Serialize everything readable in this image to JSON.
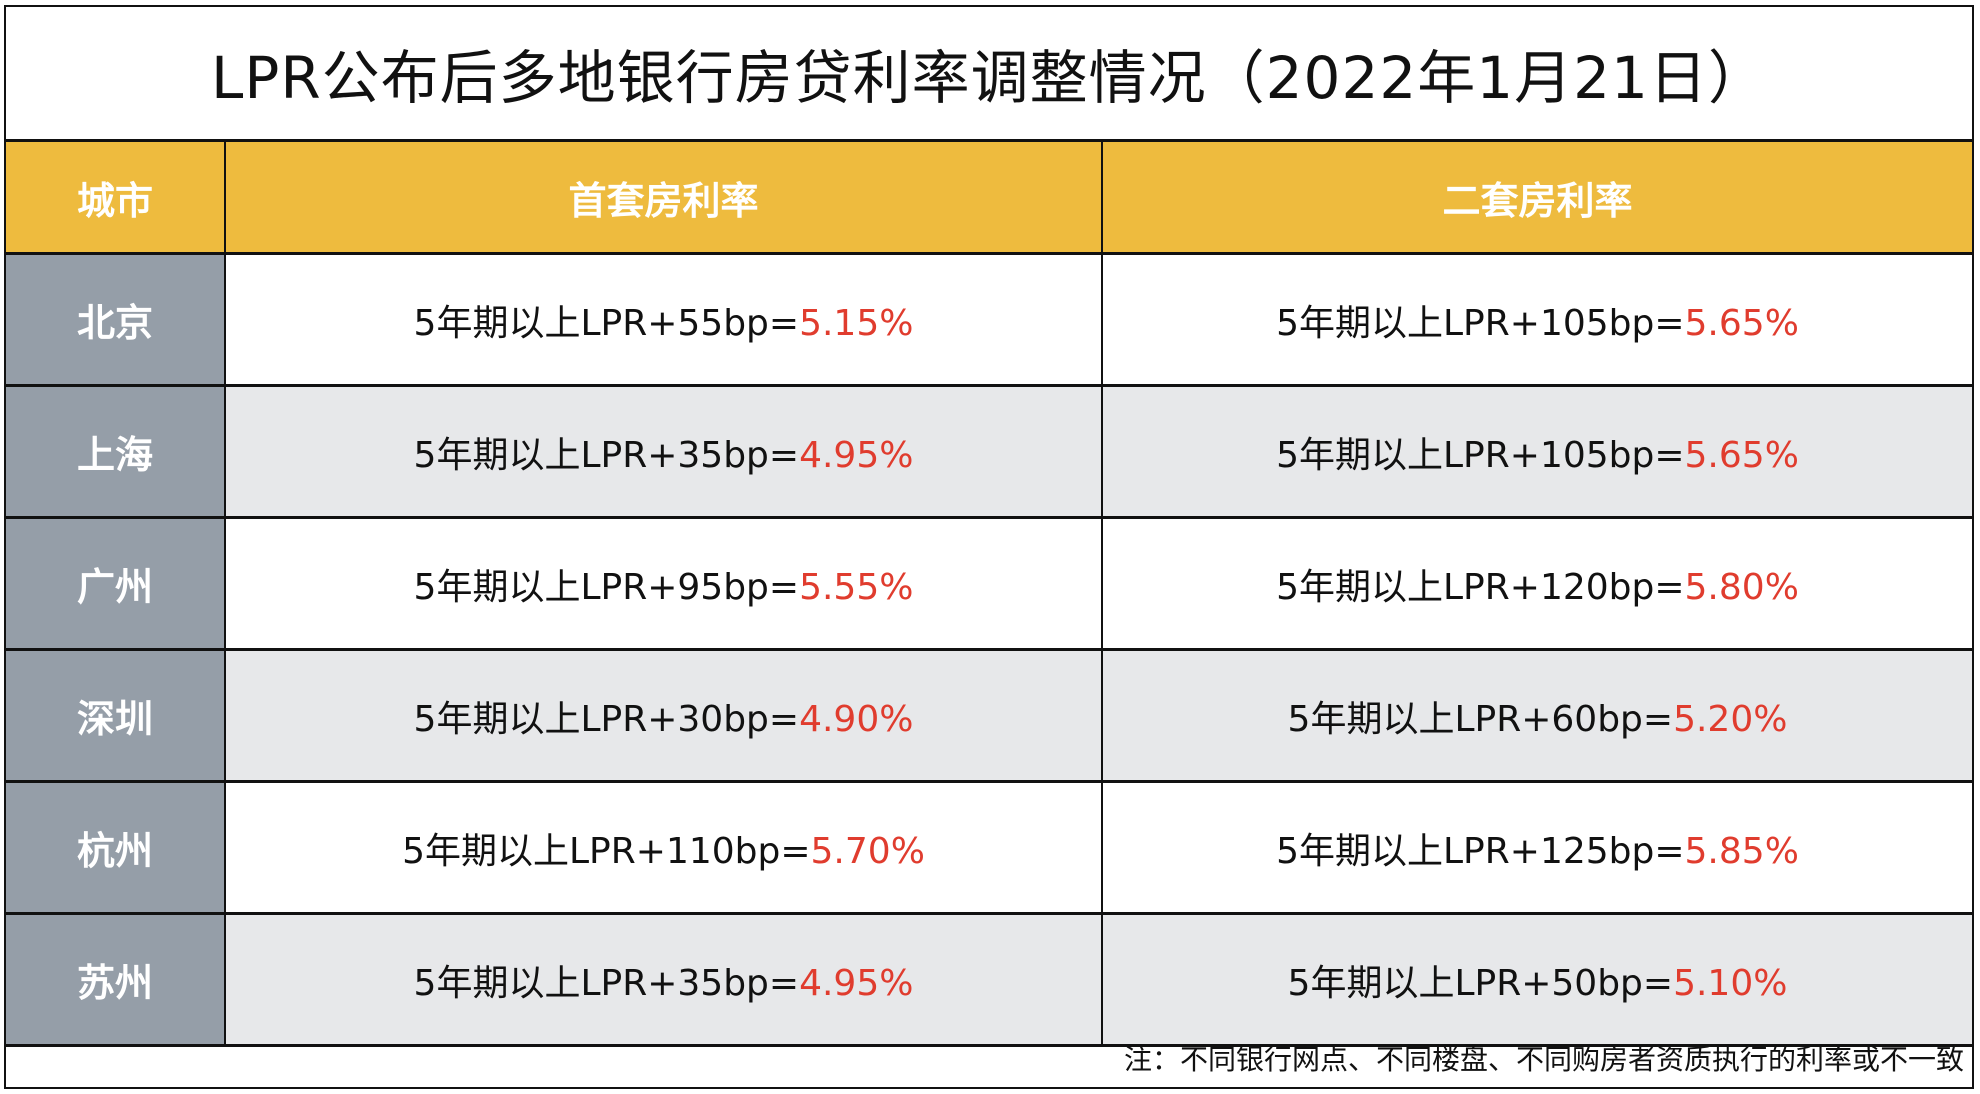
{
  "title": "LPR公布后多地银行房贷利率调整情况（2022年1月21日）",
  "colors": {
    "header_bg": "#EEBB3E",
    "city_bg": "#959EA8",
    "alt_row_bg": "#E7E8EA",
    "rate_red": "#E03C2E"
  },
  "table": {
    "headers": [
      "城市",
      "首套房利率",
      "二套房利率"
    ],
    "rows": [
      {
        "city": "北京",
        "first_formula": "5年期以上LPR+55bp=",
        "first_rate": "5.15%",
        "second_formula": "5年期以上LPR+105bp=",
        "second_rate": "5.65%"
      },
      {
        "city": "上海",
        "first_formula": "5年期以上LPR+35bp=",
        "first_rate": "4.95%",
        "second_formula": "5年期以上LPR+105bp=",
        "second_rate": "5.65%"
      },
      {
        "city": "广州",
        "first_formula": "5年期以上LPR+95bp=",
        "first_rate": "5.55%",
        "second_formula": "5年期以上LPR+120bp=",
        "second_rate": "5.80%"
      },
      {
        "city": "深圳",
        "first_formula": "5年期以上LPR+30bp=",
        "first_rate": "4.90%",
        "second_formula": "5年期以上LPR+60bp=",
        "second_rate": "5.20%"
      },
      {
        "city": "杭州",
        "first_formula": "5年期以上LPR+110bp=",
        "first_rate": "5.70%",
        "second_formula": "5年期以上LPR+125bp=",
        "second_rate": "5.85%"
      },
      {
        "city": "苏州",
        "first_formula": "5年期以上LPR+35bp=",
        "first_rate": "4.95%",
        "second_formula": "5年期以上LPR+50bp=",
        "second_rate": "5.10%"
      }
    ]
  },
  "footnote": "注：不同银行网点、不同楼盘、不同购房者资质执行的利率或不一致"
}
